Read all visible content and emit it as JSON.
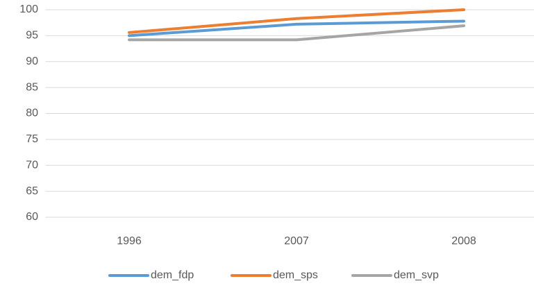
{
  "chart_data": {
    "type": "line",
    "categories": [
      "1996",
      "2007",
      "2008"
    ],
    "series": [
      {
        "name": "dem_fdp",
        "color": "#5b9bd5",
        "values": [
          95.0,
          97.2,
          97.8
        ]
      },
      {
        "name": "dem_sps",
        "color": "#ed7d31",
        "values": [
          95.6,
          98.3,
          100
        ]
      },
      {
        "name": "dem_svp",
        "color": "#a5a5a5",
        "values": [
          94.2,
          94.2,
          96.9
        ]
      }
    ],
    "ylim": [
      60,
      100
    ],
    "yticks": [
      60,
      65,
      70,
      75,
      80,
      85,
      90,
      95,
      100
    ],
    "grid": true,
    "legend": "bottom"
  }
}
